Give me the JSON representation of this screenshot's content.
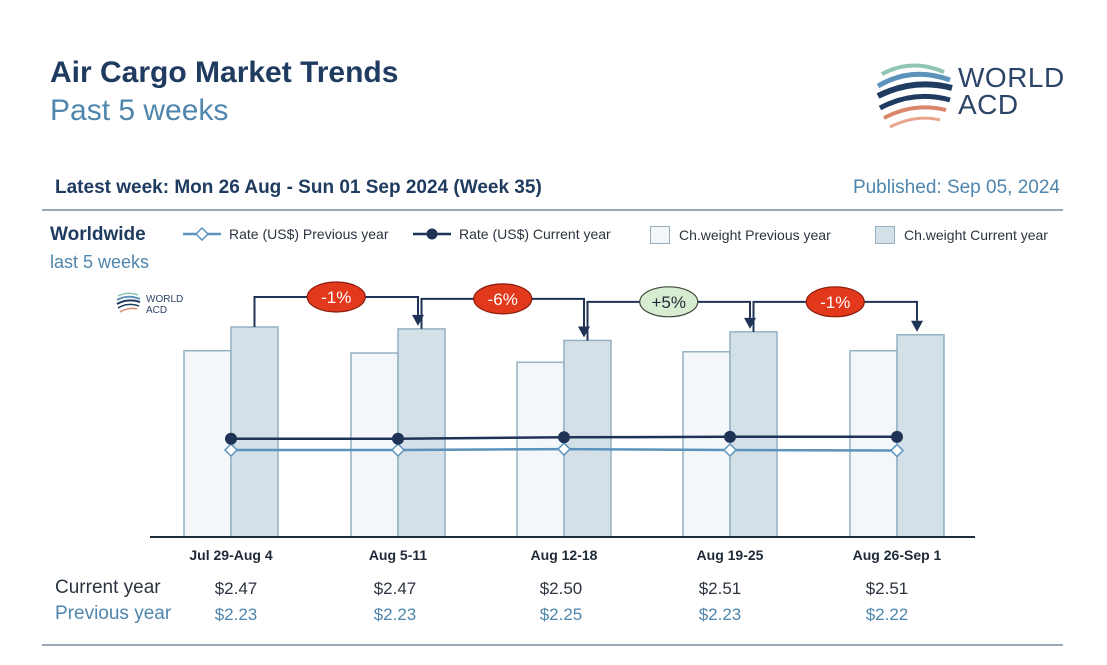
{
  "header": {
    "title": "Air Cargo Market Trends",
    "subtitle": "Past 5 weeks",
    "logo_line1": "WORLD",
    "logo_line2": "ACD",
    "latest_week": "Latest week: Mon 26 Aug - Sun 01 Sep 2024 (Week 35)",
    "published": "Published: Sep 05, 2024"
  },
  "region": {
    "name": "Worldwide",
    "period": "last 5 weeks"
  },
  "legend": {
    "rate_prev": "Rate (US$) Previous year",
    "rate_cur": "Rate (US$) Current year",
    "weight_prev": "Ch.weight Previous year",
    "weight_cur": "Ch.weight Current year"
  },
  "table": {
    "current_label": "Current year",
    "previous_label": "Previous year",
    "current": [
      "$2.47",
      "$2.47",
      "$2.50",
      "$2.51",
      "$2.51"
    ],
    "previous": [
      "$2.23",
      "$2.23",
      "$2.25",
      "$2.23",
      "$2.22"
    ]
  },
  "colors": {
    "dark_navy": "#1f3b60",
    "rate_prev": "#5b93bd",
    "rate_cur": "#1f3356",
    "bar_prev_fill": "#f4f7f9",
    "bar_cur_fill": "#d3e0e8",
    "bar_stroke": "#93b1c3",
    "neg_badge": "#e2391d",
    "pos_badge": "#d8ecd2"
  },
  "chart_data": {
    "type": "bar",
    "categories": [
      "Jul 29-Aug 4",
      "Aug 5-11",
      "Aug 12-18",
      "Aug 19-25",
      "Aug 26-Sep 1"
    ],
    "series": [
      {
        "name": "Ch.weight Previous year",
        "kind": "bar",
        "values": [
          0.887,
          0.876,
          0.832,
          0.882,
          0.887
        ]
      },
      {
        "name": "Ch.weight Current year",
        "kind": "bar",
        "values": [
          1.0,
          0.991,
          0.936,
          0.977,
          0.963
        ]
      },
      {
        "name": "Rate (US$) Previous year",
        "kind": "line",
        "values": [
          2.23,
          2.23,
          2.25,
          2.23,
          2.22
        ]
      },
      {
        "name": "Rate (US$) Current year",
        "kind": "line",
        "values": [
          2.47,
          2.47,
          2.5,
          2.51,
          2.51
        ]
      }
    ],
    "week_changes": [
      "-1%",
      "-6%",
      "+5%",
      "-1%"
    ],
    "change_sign": [
      "neg",
      "neg",
      "pos",
      "neg"
    ],
    "y_axis_shown": false
  }
}
